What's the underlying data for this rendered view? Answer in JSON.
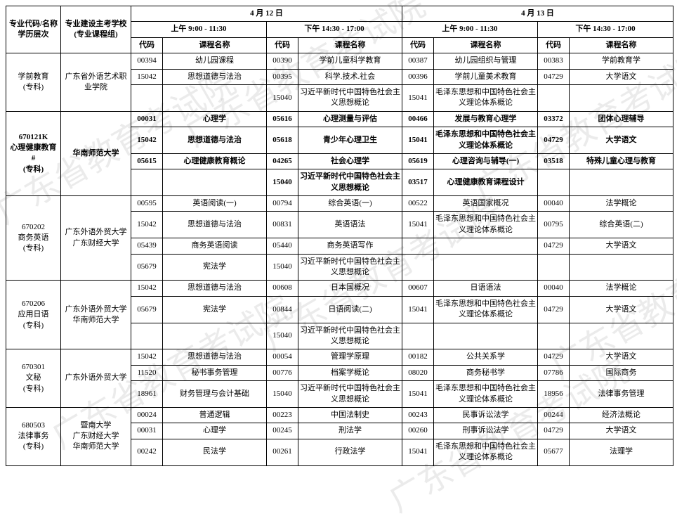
{
  "header": {
    "col_major": "专业代码/名称\n学历层次",
    "col_school": "专业建设主考学校\n(专业课程组)",
    "day1": "4 月 12 日",
    "day2": "4 月 13 日",
    "am": "上午  9:00 - 11:30",
    "pm": "下午  14:30 - 17:00",
    "code": "代码",
    "name": "课程名称"
  },
  "watermark": "广东省教育考试院",
  "majors": [
    {
      "title": "学前教育\n(专科)",
      "school": "广东省外语艺术职业学院",
      "rows": [
        {
          "c1": "00394",
          "n1": "幼儿园课程",
          "c2": "00390",
          "n2": "学前儿童科学教育",
          "c3": "00387",
          "n3": "幼儿园组织与管理",
          "c4": "00383",
          "n4": "学前教育学"
        },
        {
          "c1": "15042",
          "n1": "思想道德与法治",
          "c2": "00395",
          "n2": "科学.技术.社会",
          "c3": "00396",
          "n3": "学前儿童美术教育",
          "c4": "04729",
          "n4": "大学语文"
        },
        {
          "c1": "",
          "n1": "",
          "c2": "15040",
          "n2": "习近平新时代中国特色社会主义思想概论",
          "c3": "15041",
          "n3": "毛泽东思想和中国特色社会主义理论体系概论",
          "c4": "",
          "n4": ""
        }
      ]
    },
    {
      "title": "670121K\n心理健康教育\n#\n(专科)",
      "school": "华南师范大学",
      "bold": true,
      "rows": [
        {
          "c1": "00031",
          "n1": "心理学",
          "c2": "05616",
          "n2": "心理测量与评估",
          "c3": "00466",
          "n3": "发展与教育心理学",
          "c4": "03372",
          "n4": "团体心理辅导"
        },
        {
          "c1": "15042",
          "n1": "思想道德与法治",
          "c2": "05618",
          "n2": "青少年心理卫生",
          "c3": "15041",
          "n3": "毛泽东思想和中国特色社会主义理论体系概论",
          "c4": "04729",
          "n4": "大学语文"
        },
        {
          "c1": "05615",
          "n1": "心理健康教育概论",
          "c2": "04265",
          "n2": "社会心理学",
          "c3": "05619",
          "n3": "心理咨询与辅导(一)",
          "c4": "03518",
          "n4": "特殊儿童心理与教育"
        },
        {
          "c1": "",
          "n1": "",
          "c2": "15040",
          "n2": "习近平新时代中国特色社会主义思想概论",
          "c3": "03517",
          "n3": "心理健康教育课程设计",
          "c4": "",
          "n4": ""
        }
      ]
    },
    {
      "title": "670202\n商务英语\n(专科)",
      "school": "广东外语外贸大学\n广东财经大学",
      "rows": [
        {
          "c1": "00595",
          "n1": "英语阅读(一)",
          "c2": "00794",
          "n2": "综合英语(一)",
          "c3": "00522",
          "n3": "英语国家概况",
          "c4": "00040",
          "n4": "法学概论"
        },
        {
          "c1": "15042",
          "n1": "思想道德与法治",
          "c2": "00831",
          "n2": "英语语法",
          "c3": "15041",
          "n3": "毛泽东思想和中国特色社会主义理论体系概论",
          "c4": "00795",
          "n4": "综合英语(二)"
        },
        {
          "c1": "05439",
          "n1": "商务英语阅读",
          "c2": "05440",
          "n2": "商务英语写作",
          "c3": "",
          "n3": "",
          "c4": "04729",
          "n4": "大学语文"
        },
        {
          "c1": "05679",
          "n1": "宪法学",
          "c2": "15040",
          "n2": "习近平新时代中国特色社会主义思想概论",
          "c3": "",
          "n3": "",
          "c4": "",
          "n4": ""
        }
      ]
    },
    {
      "title": "670206\n应用日语\n(专科)",
      "school": "广东外语外贸大学\n华南师范大学",
      "rows": [
        {
          "c1": "15042",
          "n1": "思想道德与法治",
          "c2": "00608",
          "n2": "日本国概况",
          "c3": "00607",
          "n3": "日语语法",
          "c4": "00040",
          "n4": "法学概论"
        },
        {
          "c1": "05679",
          "n1": "宪法学",
          "c2": "00844",
          "n2": "日语阅读(二)",
          "c3": "15041",
          "n3": "毛泽东思想和中国特色社会主义理论体系概论",
          "c4": "04729",
          "n4": "大学语文"
        },
        {
          "c1": "",
          "n1": "",
          "c2": "15040",
          "n2": "习近平新时代中国特色社会主义思想概论",
          "c3": "",
          "n3": "",
          "c4": "",
          "n4": ""
        }
      ]
    },
    {
      "title": "670301\n文秘\n(专科)",
      "school": "广东外语外贸大学",
      "rows": [
        {
          "c1": "15042",
          "n1": "思想道德与法治",
          "c2": "00054",
          "n2": "管理学原理",
          "c3": "00182",
          "n3": "公共关系学",
          "c4": "04729",
          "n4": "大学语文"
        },
        {
          "c1": "11520",
          "n1": "秘书事务管理",
          "c2": "00776",
          "n2": "档案学概论",
          "c3": "08020",
          "n3": "商务秘书学",
          "c4": "07786",
          "n4": "国际商务"
        },
        {
          "c1": "18961",
          "n1": "财务管理与会计基础",
          "c2": "15040",
          "n2": "习近平新时代中国特色社会主义思想概论",
          "c3": "15041",
          "n3": "毛泽东思想和中国特色社会主义理论体系概论",
          "c4": "18956",
          "n4": "法律事务管理"
        }
      ]
    },
    {
      "title": "680503\n法律事务\n(专科)",
      "school": "暨南大学\n广东财经大学\n华南师范大学",
      "rows": [
        {
          "c1": "00024",
          "n1": "普通逻辑",
          "c2": "00223",
          "n2": "中国法制史",
          "c3": "00243",
          "n3": "民事诉讼法学",
          "c4": "00244",
          "n4": "经济法概论"
        },
        {
          "c1": "00031",
          "n1": "心理学",
          "c2": "00245",
          "n2": "刑法学",
          "c3": "00260",
          "n3": "刑事诉讼法学",
          "c4": "04729",
          "n4": "大学语文"
        },
        {
          "c1": "00242",
          "n1": "民法学",
          "c2": "00261",
          "n2": "行政法学",
          "c3": "15041",
          "n3": "毛泽东思想和中国特色社会主义理论体系概论",
          "c4": "05677",
          "n4": "法理学"
        }
      ]
    }
  ]
}
